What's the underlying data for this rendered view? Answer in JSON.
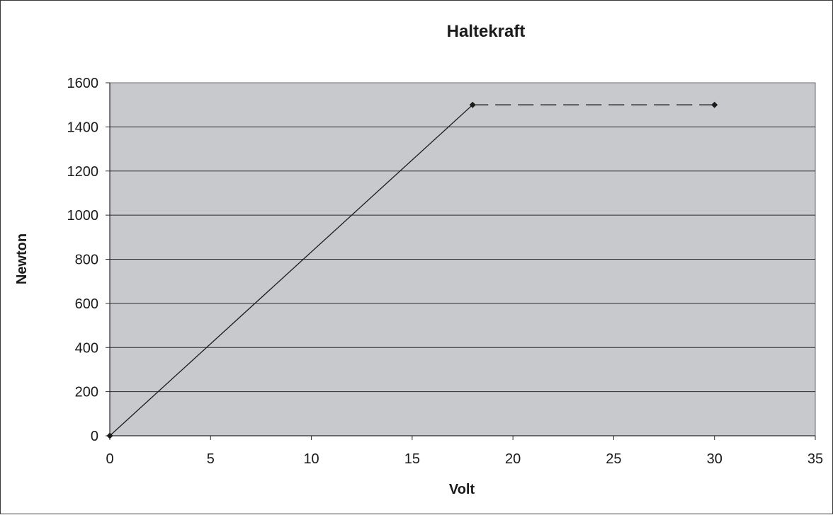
{
  "chart_data": {
    "type": "line",
    "title": "Haltekraft",
    "xlabel": "Volt",
    "ylabel": "Newton",
    "xlim": [
      0,
      35
    ],
    "ylim": [
      0,
      1600
    ],
    "x_ticks": [
      "0",
      "5",
      "10",
      "15",
      "20",
      "25",
      "30",
      "35"
    ],
    "y_ticks": [
      "0",
      "200",
      "400",
      "600",
      "800",
      "1000",
      "1200",
      "1400",
      "1600"
    ],
    "grid": "horizontal",
    "plot_background": "#c8c9cc",
    "line_color": "#1a1a1a",
    "series": [
      {
        "style": "solid",
        "x": [
          0,
          18
        ],
        "y": [
          0,
          1500
        ]
      },
      {
        "style": "dashed",
        "x": [
          18,
          30
        ],
        "y": [
          1500,
          1500
        ]
      }
    ]
  }
}
